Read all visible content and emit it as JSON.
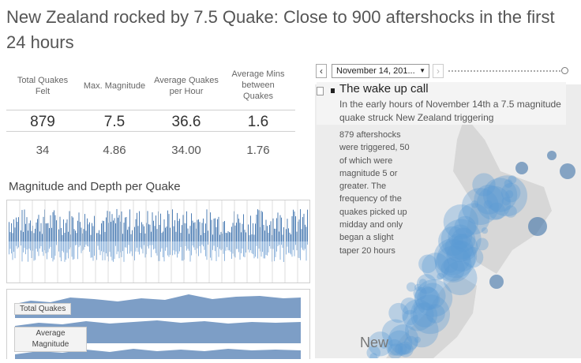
{
  "title": "New Zealand rocked by 7.5 Quake: Close to 900 aftershocks in the first 24 hours",
  "kpis": [
    {
      "label": "Total Quakes Felt",
      "big": "879",
      "small": "34"
    },
    {
      "label": "Max. Magnitude",
      "big": "7.5",
      "small": "4.86"
    },
    {
      "label": "Average Quakes per Hour",
      "big": "36.6",
      "small": "34.00"
    },
    {
      "label": "Average Mins between Quakes",
      "big": "1.6",
      "small": "1.76"
    }
  ],
  "section_title": "Magnitude and Depth per Quake",
  "sparklines": {
    "total_quakes_label": "Total Quakes",
    "avg_magnitude_label": "Average Magnitude"
  },
  "controls": {
    "date_value": "November 14, 201...",
    "prev_icon": "chevron-left-icon",
    "next_icon": "chevron-right-icon",
    "prev_glyph": "‹",
    "next_glyph": "›"
  },
  "story": {
    "title": "The wake up call",
    "subtitle": "In the early hours of November 14th a 7.5 magnitude quake struck New Zealand triggering",
    "body": "879 aftershocks were triggered, 50 of which were magnitude 5 or greater. The frequency of the quakes picked up midday and only began a slight taper 20 hours"
  },
  "map": {
    "label": "New"
  },
  "colors": {
    "bar_dark": "#4f7fb5",
    "bar_light": "#8fb4dc",
    "area": "#7d9ec6",
    "bubble": "#5b9bd5"
  }
}
